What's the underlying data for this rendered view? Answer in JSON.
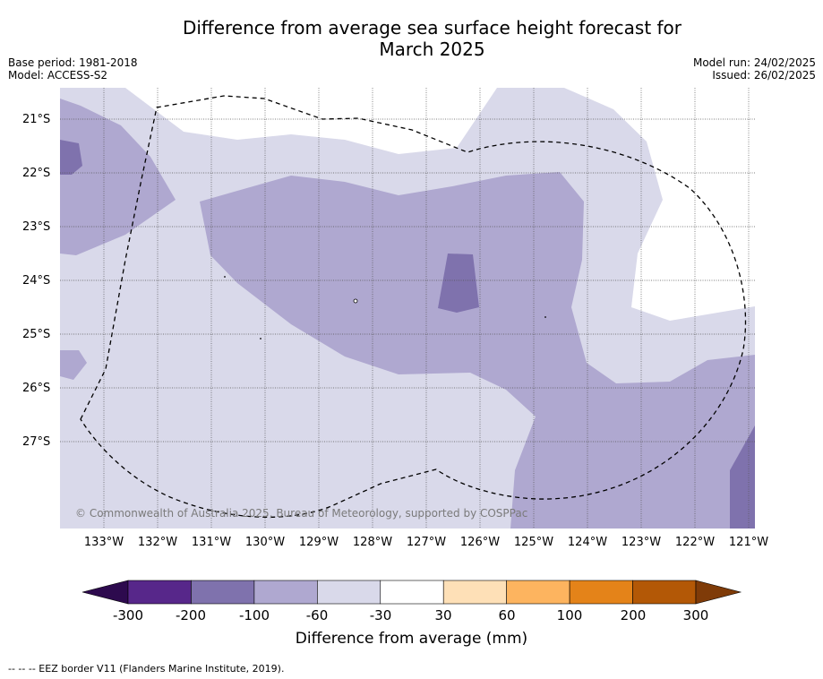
{
  "title_line1": "Difference from average sea surface height forecast for",
  "title_line2": "March 2025",
  "base_period": "Base period: 1981-2018",
  "model": "Model: ACCESS-S2",
  "model_run": "Model run: 24/02/2025",
  "issued": "Issued: 26/02/2025",
  "copyright": "© Commonwealth of Australia 2025, Bureau of Meteorology, supported by COSPPac",
  "lat_labels": [
    "21°S",
    "22°S",
    "23°S",
    "24°S",
    "25°S",
    "26°S",
    "27°S"
  ],
  "lon_labels": [
    "133°W",
    "132°W",
    "131°W",
    "130°W",
    "129°W",
    "128°W",
    "127°W",
    "126°W",
    "125°W",
    "124°W",
    "123°W",
    "122°W",
    "121°W"
  ],
  "colorbar": {
    "title": "Difference from average (mm)",
    "ticks": [
      "-300",
      "-200",
      "-100",
      "-60",
      "-30",
      "30",
      "60",
      "100",
      "200",
      "300"
    ],
    "colors": [
      "#57278a",
      "#7f72ad",
      "#afa8d0",
      "#d9d9ea",
      "#ffffff",
      "#fee0b7",
      "#fdb45f",
      "#e48319",
      "#b35806"
    ],
    "under_color": "#2d0a4e",
    "over_color": "#7f3b08"
  },
  "footnote": "--  --  -- EEZ border V11 (Flanders Marine Institute, 2019)."
}
